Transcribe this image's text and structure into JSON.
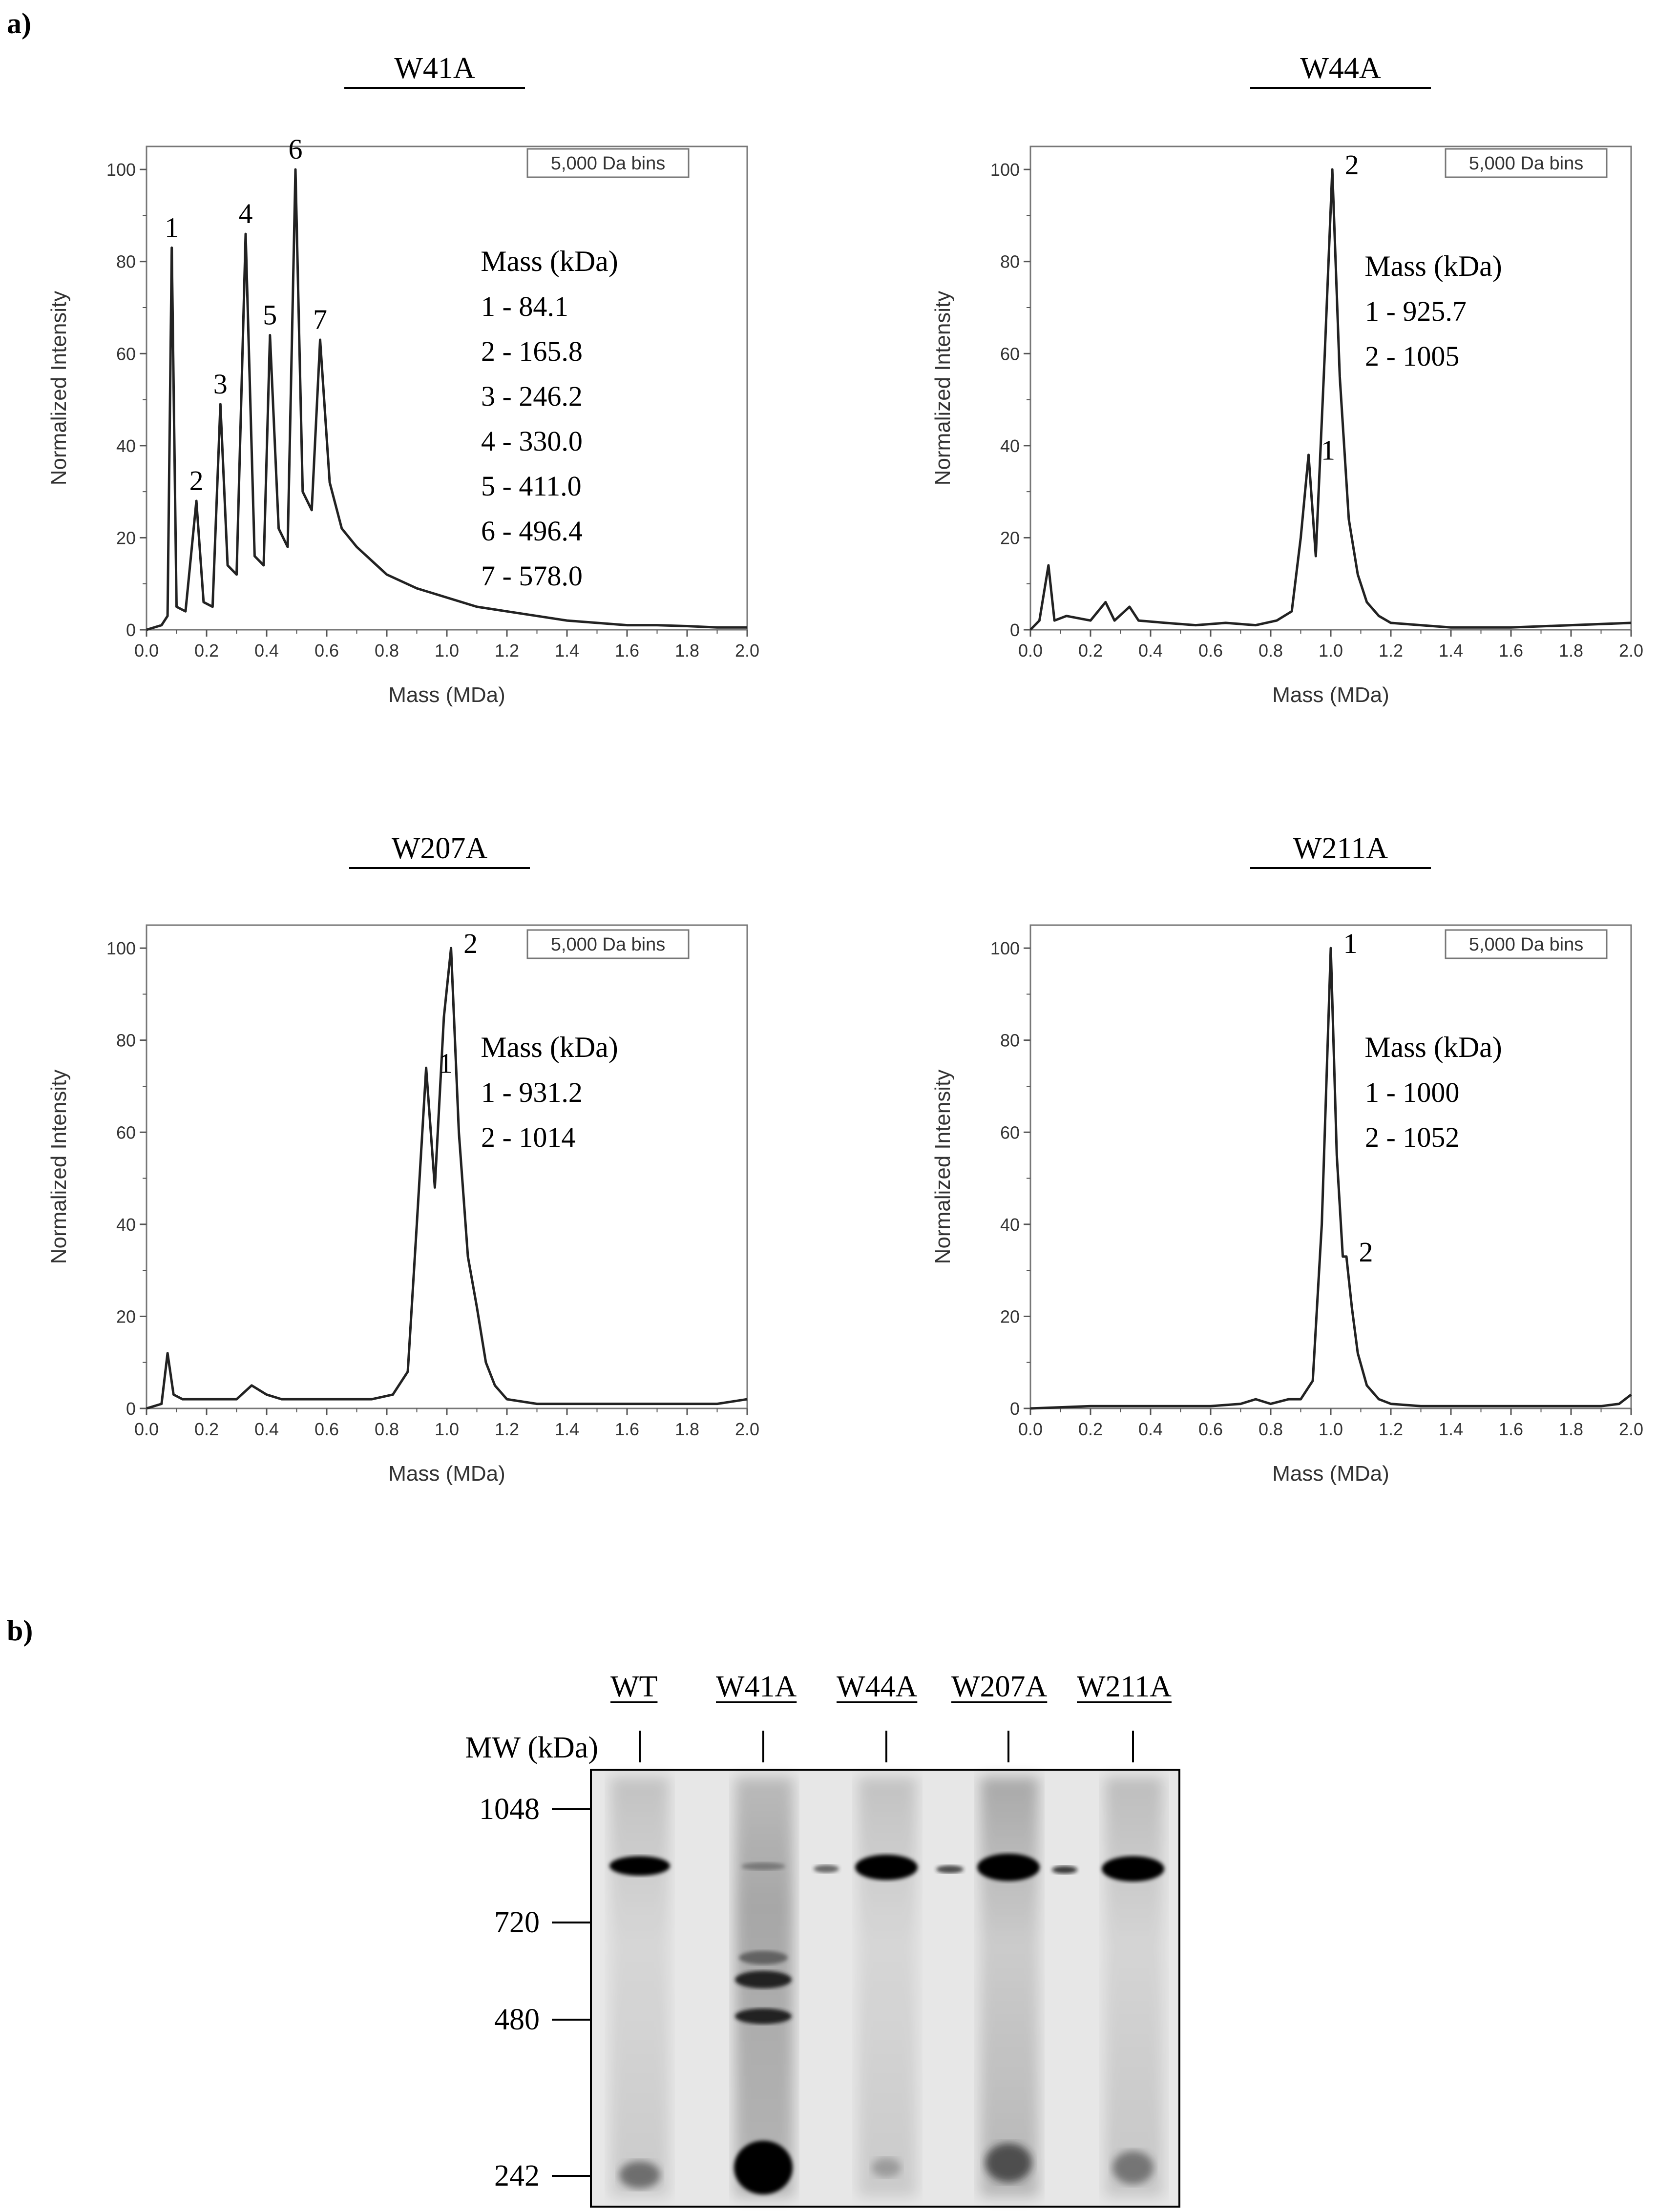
{
  "panel_labels": {
    "a": "a)",
    "b": "b)"
  },
  "chart_data": [
    {
      "type": "line",
      "title": "W41A",
      "xlabel": "Mass (MDa)",
      "ylabel": "Normalized Intensity",
      "xlim": [
        0,
        2
      ],
      "ylim": [
        0,
        105
      ],
      "xticks": [
        "0.0",
        "0.2",
        "0.4",
        "0.6",
        "0.8",
        "1.0",
        "1.2",
        "1.4",
        "1.6",
        "1.8",
        "2.0"
      ],
      "yticks": [
        "0",
        "20",
        "40",
        "60",
        "80",
        "100"
      ],
      "bin_label": "5,000 Da bins",
      "legend_title": "Mass (kDa)",
      "legend_entries": [
        "1 - 84.1",
        "2 - 165.8",
        "3 - 246.2",
        "4 - 330.0",
        "5 - 411.0",
        "6 - 496.4",
        "7 - 578.0"
      ],
      "peaks": [
        {
          "label": "1",
          "x": 0.084,
          "y": 83
        },
        {
          "label": "2",
          "x": 0.166,
          "y": 28
        },
        {
          "label": "3",
          "x": 0.246,
          "y": 49
        },
        {
          "label": "4",
          "x": 0.33,
          "y": 86
        },
        {
          "label": "5",
          "x": 0.411,
          "y": 64
        },
        {
          "label": "6",
          "x": 0.496,
          "y": 100
        },
        {
          "label": "7",
          "x": 0.578,
          "y": 63
        }
      ],
      "series": [
        {
          "name": "W41A",
          "x": [
            0,
            0.05,
            0.07,
            0.084,
            0.1,
            0.13,
            0.166,
            0.19,
            0.22,
            0.246,
            0.27,
            0.3,
            0.33,
            0.36,
            0.39,
            0.411,
            0.44,
            0.47,
            0.496,
            0.52,
            0.55,
            0.578,
            0.61,
            0.65,
            0.7,
            0.8,
            0.9,
            1.0,
            1.1,
            1.2,
            1.3,
            1.4,
            1.5,
            1.6,
            1.7,
            1.8,
            1.9,
            2.0
          ],
          "y": [
            0,
            1,
            3,
            83,
            5,
            4,
            28,
            6,
            5,
            49,
            14,
            12,
            86,
            16,
            14,
            64,
            22,
            18,
            100,
            30,
            26,
            63,
            32,
            22,
            18,
            12,
            9,
            7,
            5,
            4,
            3,
            2,
            1.5,
            1,
            1,
            0.8,
            0.5,
            0.5
          ]
        }
      ]
    },
    {
      "type": "line",
      "title": "W44A",
      "xlabel": "Mass (MDa)",
      "ylabel": "Normalized Intensity",
      "xlim": [
        0,
        2
      ],
      "ylim": [
        0,
        105
      ],
      "xticks": [
        "0.0",
        "0.2",
        "0.4",
        "0.6",
        "0.8",
        "1.0",
        "1.2",
        "1.4",
        "1.6",
        "1.8",
        "2.0"
      ],
      "yticks": [
        "0",
        "20",
        "40",
        "60",
        "80",
        "100"
      ],
      "bin_label": "5,000 Da bins",
      "legend_title": "Mass (kDa)",
      "legend_entries": [
        "1 - 925.7",
        "2 - 1005"
      ],
      "peaks": [
        {
          "label": "1",
          "x": 0.926,
          "y": 38
        },
        {
          "label": "2",
          "x": 1.005,
          "y": 100
        }
      ],
      "series": [
        {
          "name": "W44A",
          "x": [
            0,
            0.03,
            0.06,
            0.08,
            0.12,
            0.2,
            0.25,
            0.28,
            0.33,
            0.36,
            0.45,
            0.55,
            0.65,
            0.75,
            0.82,
            0.87,
            0.9,
            0.926,
            0.95,
            0.98,
            1.005,
            1.03,
            1.06,
            1.09,
            1.12,
            1.16,
            1.2,
            1.3,
            1.4,
            1.6,
            1.8,
            2.0
          ],
          "y": [
            0,
            2,
            14,
            2,
            3,
            2,
            6,
            2,
            5,
            2,
            1.5,
            1,
            1.5,
            1,
            2,
            4,
            20,
            38,
            16,
            60,
            100,
            55,
            24,
            12,
            6,
            3,
            1.5,
            1,
            0.5,
            0.5,
            1,
            1.5
          ]
        }
      ]
    },
    {
      "type": "line",
      "title": "W207A",
      "xlabel": "Mass (MDa)",
      "ylabel": "Normalized Intensity",
      "xlim": [
        0,
        2
      ],
      "ylim": [
        0,
        105
      ],
      "xticks": [
        "0.0",
        "0.2",
        "0.4",
        "0.6",
        "0.8",
        "1.0",
        "1.2",
        "1.4",
        "1.6",
        "1.8",
        "2.0"
      ],
      "yticks": [
        "0",
        "20",
        "40",
        "60",
        "80",
        "100"
      ],
      "bin_label": "5,000 Da bins",
      "legend_title": "Mass (kDa)",
      "legend_entries": [
        "1 - 931.2",
        "2 - 1014"
      ],
      "peaks": [
        {
          "label": "1",
          "x": 0.931,
          "y": 74
        },
        {
          "label": "2",
          "x": 1.014,
          "y": 100
        }
      ],
      "series": [
        {
          "name": "W207A",
          "x": [
            0,
            0.05,
            0.07,
            0.09,
            0.12,
            0.2,
            0.3,
            0.35,
            0.4,
            0.45,
            0.55,
            0.65,
            0.75,
            0.82,
            0.87,
            0.9,
            0.931,
            0.96,
            0.99,
            1.014,
            1.04,
            1.07,
            1.1,
            1.13,
            1.16,
            1.2,
            1.3,
            1.5,
            1.7,
            1.9,
            2.0
          ],
          "y": [
            0,
            1,
            12,
            3,
            2,
            2,
            2,
            5,
            3,
            2,
            2,
            2,
            2,
            3,
            8,
            40,
            74,
            48,
            85,
            100,
            60,
            33,
            22,
            10,
            5,
            2,
            1,
            1,
            1,
            1,
            2
          ]
        }
      ]
    },
    {
      "type": "line",
      "title": "W211A",
      "xlabel": "Mass (MDa)",
      "ylabel": "Normalized Intensity",
      "xlim": [
        0,
        2
      ],
      "ylim": [
        0,
        105
      ],
      "xticks": [
        "0.0",
        "0.2",
        "0.4",
        "0.6",
        "0.8",
        "1.0",
        "1.2",
        "1.4",
        "1.6",
        "1.8",
        "2.0"
      ],
      "yticks": [
        "0",
        "20",
        "40",
        "60",
        "80",
        "100"
      ],
      "bin_label": "5,000 Da bins",
      "legend_title": "Mass (kDa)",
      "legend_entries": [
        "1 - 1000",
        "2 - 1052"
      ],
      "peaks": [
        {
          "label": "1",
          "x": 1.0,
          "y": 100
        },
        {
          "label": "2",
          "x": 1.052,
          "y": 33
        }
      ],
      "series": [
        {
          "name": "W211A",
          "x": [
            0,
            0.2,
            0.4,
            0.6,
            0.7,
            0.75,
            0.8,
            0.86,
            0.9,
            0.94,
            0.97,
            1.0,
            1.02,
            1.04,
            1.052,
            1.07,
            1.09,
            1.12,
            1.16,
            1.2,
            1.3,
            1.5,
            1.7,
            1.9,
            1.96,
            2.0
          ],
          "y": [
            0,
            0.5,
            0.5,
            0.5,
            1,
            2,
            1,
            2,
            2,
            6,
            40,
            100,
            55,
            33,
            33,
            22,
            12,
            5,
            2,
            1,
            0.5,
            0.5,
            0.5,
            0.5,
            1,
            3
          ]
        }
      ]
    }
  ],
  "gel": {
    "lanes": [
      "WT",
      "W41A",
      "W44A",
      "W207A",
      "W211A"
    ],
    "mw_header": "MW (kDa)",
    "markers": [
      "1048",
      "720",
      "480",
      "242"
    ]
  }
}
